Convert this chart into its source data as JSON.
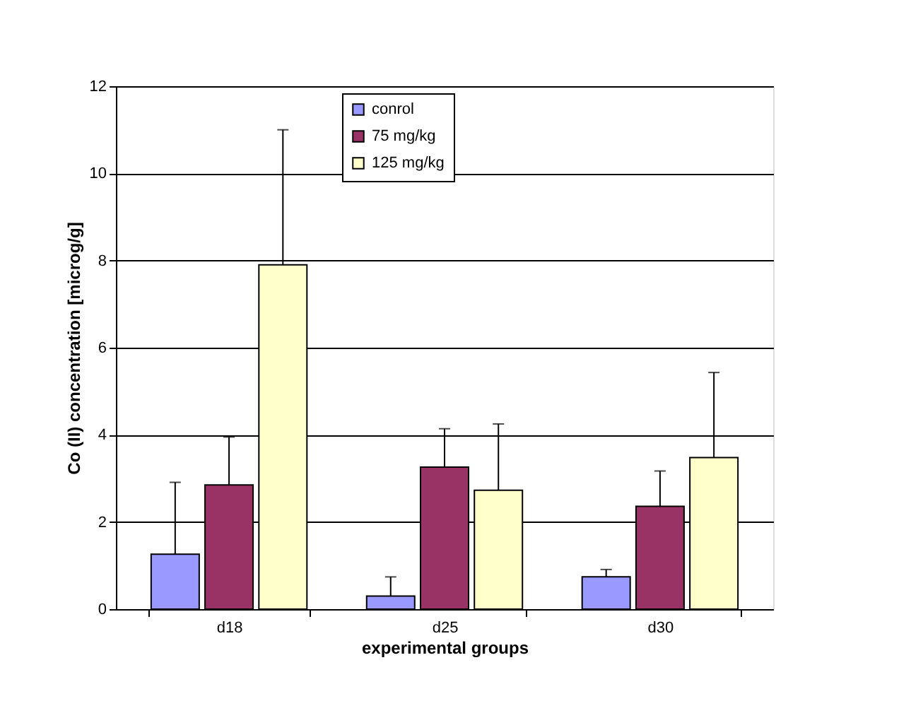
{
  "chart_data": {
    "type": "bar",
    "xlabel": "experimental groups",
    "ylabel": "Co (II) concentration [microg/g]",
    "categories": [
      "d18",
      "d25",
      "d30"
    ],
    "series": [
      {
        "name": "conrol",
        "color": "#9999ff",
        "values": [
          1.26,
          0.3,
          0.74
        ],
        "errors": [
          [
            1.26,
            2.91
          ],
          [
            0.3,
            0.74
          ],
          [
            0.74,
            0.91
          ]
        ]
      },
      {
        "name": "75 mg/kg",
        "color": "#993366",
        "values": [
          2.85,
          3.26,
          2.36
        ],
        "errors": [
          [
            2.85,
            3.95
          ],
          [
            3.26,
            4.14
          ],
          [
            2.36,
            3.17
          ]
        ]
      },
      {
        "name": "125 mg/kg",
        "color": "#ffffcc",
        "values": [
          7.9,
          2.73,
          3.48
        ],
        "errors": [
          [
            7.9,
            11.0
          ],
          [
            2.73,
            4.25
          ],
          [
            3.48,
            5.43
          ]
        ]
      }
    ],
    "ylim": [
      0,
      12
    ],
    "yticks": [
      0,
      2,
      4,
      6,
      8,
      10,
      12
    ],
    "grid": "y",
    "legend": "top"
  }
}
